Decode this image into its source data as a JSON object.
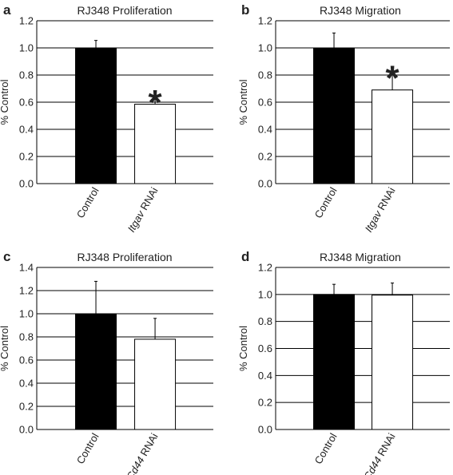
{
  "colors": {
    "control_bar": "#000000",
    "rnai_bar": "#ffffff",
    "axis": "#000000"
  },
  "chart_data": [
    {
      "panel": "a",
      "type": "bar",
      "title": "RJ348 Proliferation",
      "ylabel": "% Control",
      "ylim": [
        0,
        1.2
      ],
      "yticks": [
        "0.0",
        "0.2",
        "0.4",
        "0.6",
        "0.8",
        "1.0",
        "1.2"
      ],
      "grid": true,
      "categories": [
        {
          "label_italic": "",
          "label_plain": "Control"
        },
        {
          "label_italic": "Itgav",
          "label_plain": " RNAi"
        }
      ],
      "values": [
        1.0,
        0.585
      ],
      "errors": [
        0.055,
        0.055
      ],
      "bar_colors": [
        "#000000",
        "#ffffff"
      ],
      "significance": [
        "",
        "*"
      ]
    },
    {
      "panel": "b",
      "type": "bar",
      "title": "RJ348 Migration",
      "ylabel": "% Control",
      "ylim": [
        0,
        1.2
      ],
      "yticks": [
        "0.0",
        "0.2",
        "0.4",
        "0.6",
        "0.8",
        "1.0",
        "1.2"
      ],
      "grid": true,
      "categories": [
        {
          "label_italic": "",
          "label_plain": "Control"
        },
        {
          "label_italic": "Itgav",
          "label_plain": " RNAi"
        }
      ],
      "values": [
        1.0,
        0.69
      ],
      "errors": [
        0.11,
        0.13
      ],
      "bar_colors": [
        "#000000",
        "#ffffff"
      ],
      "significance": [
        "",
        "*"
      ]
    },
    {
      "panel": "c",
      "type": "bar",
      "title": "RJ348 Proliferation",
      "ylabel": "% Control",
      "ylim": [
        0,
        1.4
      ],
      "yticks": [
        "0.0",
        "0.2",
        "0.4",
        "0.6",
        "0.8",
        "1.0",
        "1.2",
        "1.4"
      ],
      "grid": true,
      "categories": [
        {
          "label_italic": "",
          "label_plain": "Control"
        },
        {
          "label_italic": "Cd44",
          "label_plain": " RNAi"
        }
      ],
      "values": [
        1.0,
        0.78
      ],
      "errors": [
        0.28,
        0.18
      ],
      "bar_colors": [
        "#000000",
        "#ffffff"
      ],
      "significance": [
        "",
        ""
      ]
    },
    {
      "panel": "d",
      "type": "bar",
      "title": "RJ348 Migration",
      "ylabel": "% Control",
      "ylim": [
        0,
        1.2
      ],
      "yticks": [
        "0.0",
        "0.2",
        "0.4",
        "0.6",
        "0.8",
        "1.0",
        "1.2"
      ],
      "grid": true,
      "categories": [
        {
          "label_italic": "",
          "label_plain": "Control"
        },
        {
          "label_italic": "Cd44",
          "label_plain": " RNAi"
        }
      ],
      "values": [
        1.0,
        0.995
      ],
      "errors": [
        0.075,
        0.09
      ],
      "bar_colors": [
        "#000000",
        "#ffffff"
      ],
      "significance": [
        "",
        ""
      ]
    }
  ]
}
